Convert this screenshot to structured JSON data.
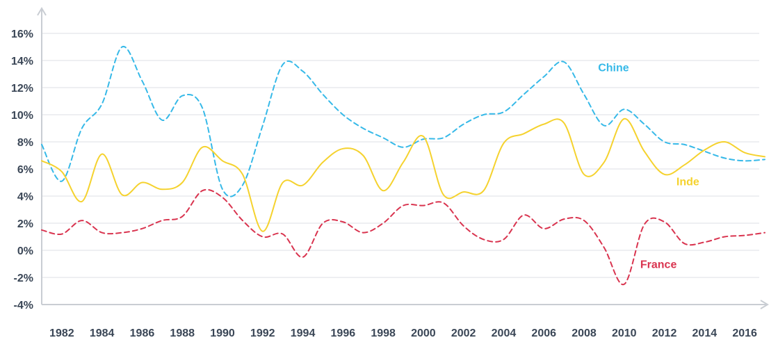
{
  "chart_data": {
    "type": "line",
    "title": "",
    "xlabel": "",
    "ylabel": "",
    "ylim": [
      -4,
      16
    ],
    "xlim": [
      1981,
      2017
    ],
    "grid": "horizontal",
    "yticks": [
      {
        "value": 16,
        "label": "16%"
      },
      {
        "value": 14,
        "label": "14%"
      },
      {
        "value": 12,
        "label": "12%"
      },
      {
        "value": 10,
        "label": "10%"
      },
      {
        "value": 8,
        "label": "8%"
      },
      {
        "value": 6,
        "label": "6%"
      },
      {
        "value": 4,
        "label": "4%"
      },
      {
        "value": 2,
        "label": "2%"
      },
      {
        "value": 0,
        "label": "0%"
      },
      {
        "value": -2,
        "label": "-2%"
      },
      {
        "value": -4,
        "label": "-4%"
      }
    ],
    "xticks": [
      {
        "value": 1982,
        "label": "1982"
      },
      {
        "value": 1984,
        "label": "1984"
      },
      {
        "value": 1986,
        "label": "1986"
      },
      {
        "value": 1988,
        "label": "1988"
      },
      {
        "value": 1990,
        "label": "1990"
      },
      {
        "value": 1992,
        "label": "1992"
      },
      {
        "value": 1994,
        "label": "1994"
      },
      {
        "value": 1996,
        "label": "1996"
      },
      {
        "value": 1998,
        "label": "1998"
      },
      {
        "value": 2000,
        "label": "2000"
      },
      {
        "value": 2002,
        "label": "2002"
      },
      {
        "value": 2004,
        "label": "2004"
      },
      {
        "value": 2006,
        "label": "2006"
      },
      {
        "value": 2008,
        "label": "2008"
      },
      {
        "value": 2010,
        "label": "2010"
      },
      {
        "value": 2012,
        "label": "2012"
      },
      {
        "value": 2014,
        "label": "2014"
      },
      {
        "value": 2016,
        "label": "2016"
      }
    ],
    "series": [
      {
        "name": "Chine",
        "color": "#36b9e8",
        "dash": "dashed",
        "x": [
          1981,
          1982,
          1983,
          1984,
          1985,
          1986,
          1987,
          1988,
          1989,
          1990,
          1991,
          1992,
          1993,
          1994,
          1995,
          1996,
          1997,
          1998,
          1999,
          2000,
          2001,
          2002,
          2003,
          2004,
          2005,
          2006,
          2007,
          2008,
          2009,
          2010,
          2011,
          2012,
          2013,
          2014,
          2015,
          2016,
          2017
        ],
        "y": [
          7.8,
          5.1,
          9.0,
          10.8,
          15.0,
          12.5,
          9.6,
          11.4,
          10.5,
          4.5,
          4.8,
          9.2,
          13.7,
          13.2,
          11.5,
          10.0,
          9.0,
          8.3,
          7.6,
          8.2,
          8.3,
          9.3,
          10.0,
          10.2,
          11.5,
          12.8,
          13.9,
          11.5,
          9.2,
          10.4,
          9.3,
          8.0,
          7.8,
          7.3,
          6.8,
          6.6,
          6.7
        ]
      },
      {
        "name": "Inde",
        "color": "#f5d22e",
        "dash": "solid",
        "x": [
          1981,
          1982,
          1983,
          1984,
          1985,
          1986,
          1987,
          1988,
          1989,
          1990,
          1991,
          1992,
          1993,
          1994,
          1995,
          1996,
          1997,
          1998,
          1999,
          2000,
          2001,
          2002,
          2003,
          2004,
          2005,
          2006,
          2007,
          2008,
          2009,
          2010,
          2011,
          2012,
          2013,
          2014,
          2015,
          2016,
          2017
        ],
        "y": [
          6.6,
          5.8,
          3.6,
          7.1,
          4.1,
          5.0,
          4.5,
          5.0,
          7.6,
          6.6,
          5.6,
          1.4,
          5.0,
          4.8,
          6.5,
          7.5,
          7.0,
          4.4,
          6.5,
          8.4,
          4.1,
          4.3,
          4.4,
          7.9,
          8.6,
          9.3,
          9.4,
          5.6,
          6.5,
          9.7,
          7.3,
          5.6,
          6.3,
          7.4,
          8.0,
          7.2,
          6.9
        ]
      },
      {
        "name": "France",
        "color": "#d9344f",
        "dash": "dashed",
        "x": [
          1981,
          1982,
          1983,
          1984,
          1985,
          1986,
          1987,
          1988,
          1989,
          1990,
          1991,
          1992,
          1993,
          1994,
          1995,
          1996,
          1997,
          1998,
          1999,
          2000,
          2001,
          2002,
          2003,
          2004,
          2005,
          2006,
          2007,
          2008,
          2009,
          2010,
          2011,
          2012,
          2013,
          2014,
          2015,
          2016,
          2017
        ],
        "y": [
          1.5,
          1.2,
          2.2,
          1.3,
          1.3,
          1.6,
          2.2,
          2.5,
          4.4,
          3.9,
          2.2,
          1.0,
          1.2,
          -0.5,
          2.0,
          2.1,
          1.3,
          2.0,
          3.3,
          3.3,
          3.5,
          1.8,
          0.8,
          0.8,
          2.6,
          1.6,
          2.3,
          2.2,
          0.2,
          -2.5,
          1.9,
          2.1,
          0.5,
          0.6,
          1.0,
          1.1,
          1.3
        ]
      }
    ],
    "annotations": [
      {
        "text": "Chine",
        "series": "Chine",
        "x": 2008.7,
        "y": 13.2
      },
      {
        "text": "Inde",
        "series": "Inde",
        "x": 2012.6,
        "y": 4.8
      },
      {
        "text": "France",
        "series": "France",
        "x": 2010.8,
        "y": -1.3
      }
    ]
  }
}
